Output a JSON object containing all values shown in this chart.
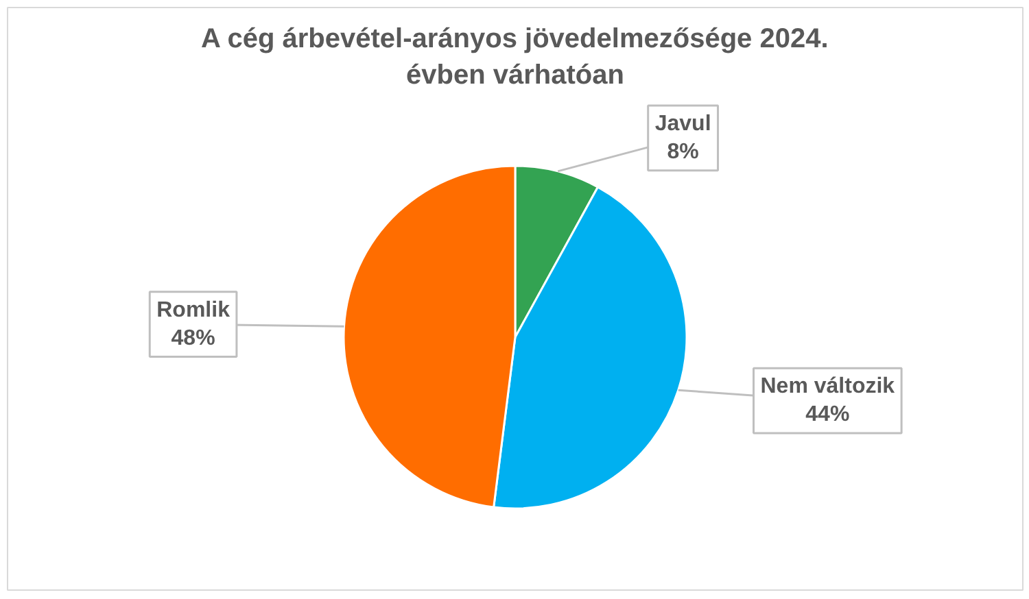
{
  "chart_data": {
    "type": "pie",
    "title": "A cég árbevétel-arányos jövedelmezősége 2024.\névben várhatóan",
    "categories": [
      "Javul",
      "Nem változik",
      "Romlik"
    ],
    "values": [
      8,
      44,
      48
    ],
    "colors": [
      "#33a352",
      "#00b0f0",
      "#ff6d00"
    ],
    "value_labels": [
      "8%",
      "44%",
      "48%"
    ]
  }
}
